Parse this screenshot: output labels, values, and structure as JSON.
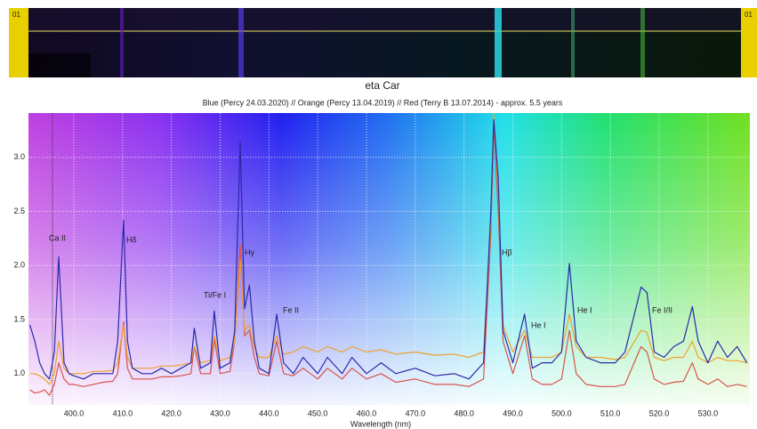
{
  "strip": {
    "labels": [
      "01",
      "01"
    ]
  },
  "chart_data": {
    "type": "line",
    "title": "eta Car",
    "subtitle": "Blue (Percy 24.03.2020) // Orange (Percy 13.04.2019) // Red (Terry B 13.07.2014) - approx. 5.5 years",
    "x_label": "Wavelength (nm)",
    "xlim": [
      390.7,
      538.6
    ],
    "ylim": [
      0.71,
      3.41
    ],
    "xticks": [
      {
        "value": 400,
        "label": "400.0"
      },
      {
        "value": 410,
        "label": "410.0"
      },
      {
        "value": 420,
        "label": "420.0"
      },
      {
        "value": 430,
        "label": "430.0"
      },
      {
        "value": 440,
        "label": "440.0"
      },
      {
        "value": 450,
        "label": "450.0"
      },
      {
        "value": 460,
        "label": "460.0"
      },
      {
        "value": 470,
        "label": "470.0"
      },
      {
        "value": 480,
        "label": "480.0"
      },
      {
        "value": 490,
        "label": "490.0"
      },
      {
        "value": 500,
        "label": "500.0"
      },
      {
        "value": 510,
        "label": "510.0"
      },
      {
        "value": 520,
        "label": "520.0"
      },
      {
        "value": 530,
        "label": "530.0"
      }
    ],
    "yticks": [
      {
        "value": 1,
        "label": "1.0"
      },
      1.5,
      {
        "value": 2,
        "label": "2.0"
      },
      2.5,
      {
        "value": 3,
        "label": "3.0"
      }
    ],
    "grid": true,
    "annotations": [
      "Ca II",
      "Hδ",
      "Ti/Fe I",
      "Hγ",
      "Fe II",
      "Hβ",
      "He I",
      "He I",
      "Fe I/II"
    ],
    "x": [
      391,
      392,
      393,
      394,
      395,
      396,
      396.9,
      398,
      399,
      400,
      402,
      404,
      406,
      408,
      409,
      410.2,
      411,
      412,
      414,
      416,
      418,
      420,
      422,
      424,
      424.7,
      426,
      428,
      428.8,
      430,
      432,
      433,
      434.1,
      435,
      436,
      437,
      438,
      440,
      441.6,
      443,
      445,
      447,
      450,
      452,
      455,
      457,
      460,
      463,
      466,
      470,
      474,
      478,
      481,
      484,
      485.5,
      486.1,
      487,
      488,
      490,
      492.4,
      494,
      496,
      498,
      500,
      501.6,
      503,
      505,
      508,
      511,
      513,
      516.3,
      517.5,
      519,
      521,
      523,
      525,
      526.8,
      528,
      530,
      532,
      534,
      536,
      538
    ],
    "series": [
      {
        "color": "#d9534a",
        "values": [
          0.85,
          0.82,
          0.83,
          0.85,
          0.8,
          0.9,
          1.1,
          0.95,
          0.9,
          0.9,
          0.88,
          0.9,
          0.92,
          0.93,
          1.0,
          1.48,
          1.05,
          0.95,
          0.95,
          0.95,
          0.97,
          0.97,
          0.98,
          1.0,
          1.25,
          1.0,
          1.0,
          1.32,
          1.0,
          1.02,
          1.3,
          2.2,
          1.35,
          1.4,
          1.15,
          1.0,
          0.98,
          1.3,
          1.0,
          0.98,
          1.05,
          0.95,
          1.05,
          0.95,
          1.05,
          0.95,
          1.0,
          0.92,
          0.95,
          0.9,
          0.9,
          0.88,
          0.95,
          2.3,
          3.3,
          2.5,
          1.3,
          1.0,
          1.35,
          0.95,
          0.9,
          0.9,
          0.95,
          1.4,
          1.0,
          0.9,
          0.88,
          0.88,
          0.9,
          1.25,
          1.2,
          0.95,
          0.9,
          0.92,
          0.93,
          1.1,
          0.95,
          0.9,
          0.95,
          0.88,
          0.9,
          0.88
        ]
      },
      {
        "color": "#f0a030",
        "values": [
          1.0,
          1.0,
          0.98,
          0.95,
          0.9,
          1.0,
          1.3,
          1.05,
          1.0,
          1.0,
          1.0,
          1.02,
          1.02,
          1.03,
          1.1,
          1.45,
          1.15,
          1.05,
          1.05,
          1.05,
          1.07,
          1.07,
          1.08,
          1.1,
          1.25,
          1.1,
          1.12,
          1.35,
          1.12,
          1.15,
          1.3,
          2.05,
          1.4,
          1.45,
          1.25,
          1.15,
          1.15,
          1.35,
          1.18,
          1.2,
          1.25,
          1.2,
          1.25,
          1.2,
          1.25,
          1.2,
          1.22,
          1.18,
          1.2,
          1.17,
          1.18,
          1.15,
          1.2,
          2.4,
          3.4,
          2.7,
          1.45,
          1.2,
          1.4,
          1.15,
          1.15,
          1.15,
          1.2,
          1.55,
          1.25,
          1.15,
          1.15,
          1.13,
          1.15,
          1.4,
          1.38,
          1.15,
          1.12,
          1.15,
          1.15,
          1.3,
          1.15,
          1.1,
          1.15,
          1.12,
          1.12,
          1.1
        ]
      },
      {
        "color": "#2a2aa8",
        "values": [
          1.45,
          1.3,
          1.1,
          1.0,
          0.95,
          1.2,
          2.08,
          1.1,
          1.0,
          0.98,
          0.95,
          1.0,
          1.0,
          1.0,
          1.3,
          2.42,
          1.3,
          1.05,
          1.0,
          1.0,
          1.05,
          1.0,
          1.05,
          1.1,
          1.42,
          1.05,
          1.1,
          1.58,
          1.05,
          1.1,
          1.4,
          3.15,
          1.6,
          1.82,
          1.3,
          1.05,
          1.0,
          1.55,
          1.1,
          1.0,
          1.15,
          1.0,
          1.15,
          1.0,
          1.15,
          1.0,
          1.1,
          1.0,
          1.05,
          0.98,
          1.0,
          0.95,
          1.1,
          2.5,
          3.35,
          2.8,
          1.4,
          1.1,
          1.55,
          1.05,
          1.1,
          1.1,
          1.2,
          2.02,
          1.3,
          1.15,
          1.1,
          1.1,
          1.2,
          1.8,
          1.75,
          1.2,
          1.15,
          1.25,
          1.3,
          1.62,
          1.3,
          1.1,
          1.3,
          1.15,
          1.25,
          1.1
        ]
      }
    ]
  }
}
